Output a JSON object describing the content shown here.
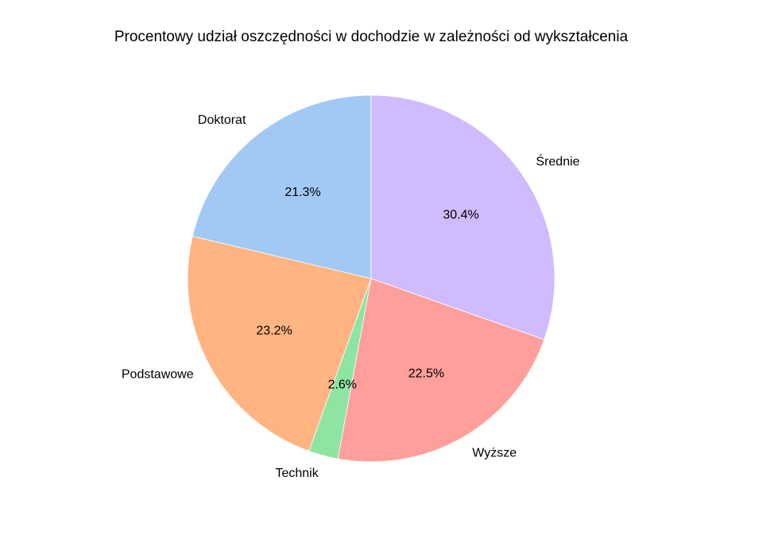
{
  "chart_data": {
    "type": "pie",
    "title": "Procentowy udział oszczędności w dochodzie w zależności od wykształcenia",
    "start_angle_deg": 90,
    "direction": "counterclockwise",
    "slices": [
      {
        "label": "Doktorat",
        "value": 21.3,
        "pct_label": "21.3%",
        "color": "#a1c9f4"
      },
      {
        "label": "Podstawowe",
        "value": 23.2,
        "pct_label": "23.2%",
        "color": "#ffb482"
      },
      {
        "label": "Technik",
        "value": 2.6,
        "pct_label": "2.6%",
        "color": "#8de5a1"
      },
      {
        "label": "Wyższe",
        "value": 22.5,
        "pct_label": "22.5%",
        "color": "#ff9f9b"
      },
      {
        "label": "Średnie",
        "value": 30.4,
        "pct_label": "30.4%",
        "color": "#d0bbff"
      }
    ],
    "legend": "none"
  }
}
